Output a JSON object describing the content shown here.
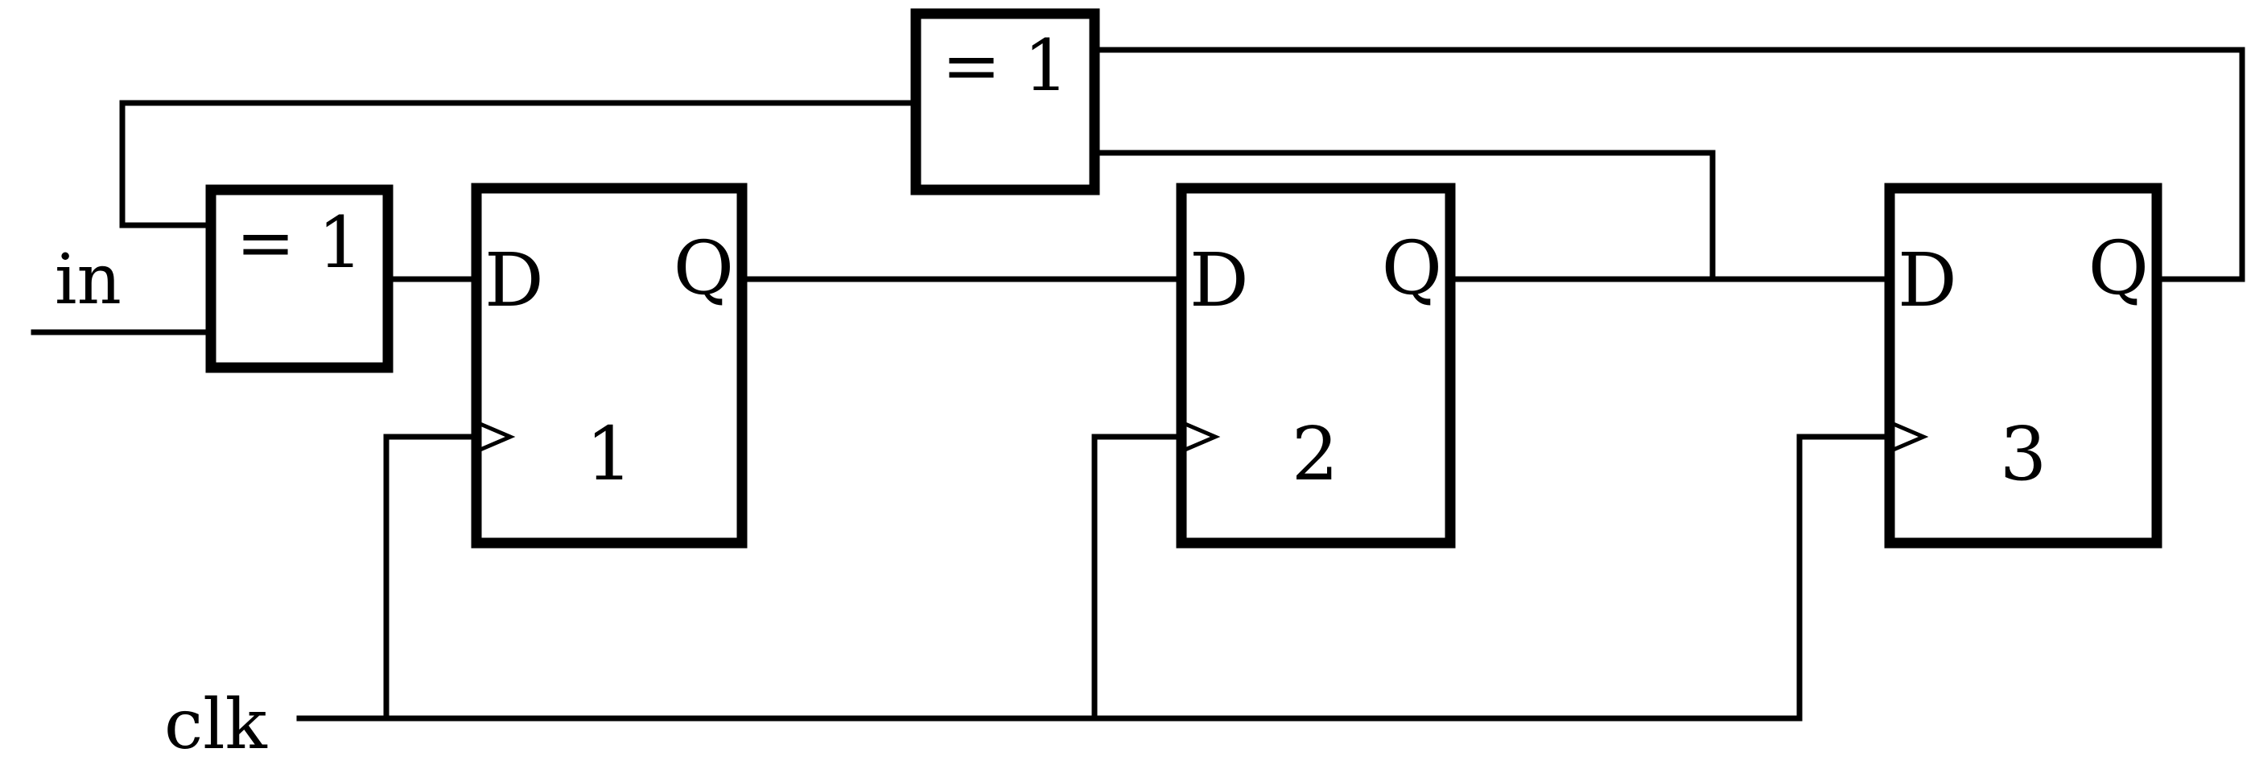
{
  "inputs": {
    "data_in": "in",
    "clock": "clk"
  },
  "gates": [
    {
      "id": "xor-input",
      "label": "= 1"
    },
    {
      "id": "xor-feedback",
      "label": "= 1"
    }
  ],
  "flipflops": [
    {
      "number": "1",
      "d_label": "D",
      "q_label": "Q",
      "color": "#ff0000"
    },
    {
      "number": "2",
      "d_label": "D",
      "q_label": "Q",
      "color": "#00ee00"
    },
    {
      "number": "3",
      "d_label": "D",
      "q_label": "Q",
      "color": "#0000ff"
    }
  ]
}
